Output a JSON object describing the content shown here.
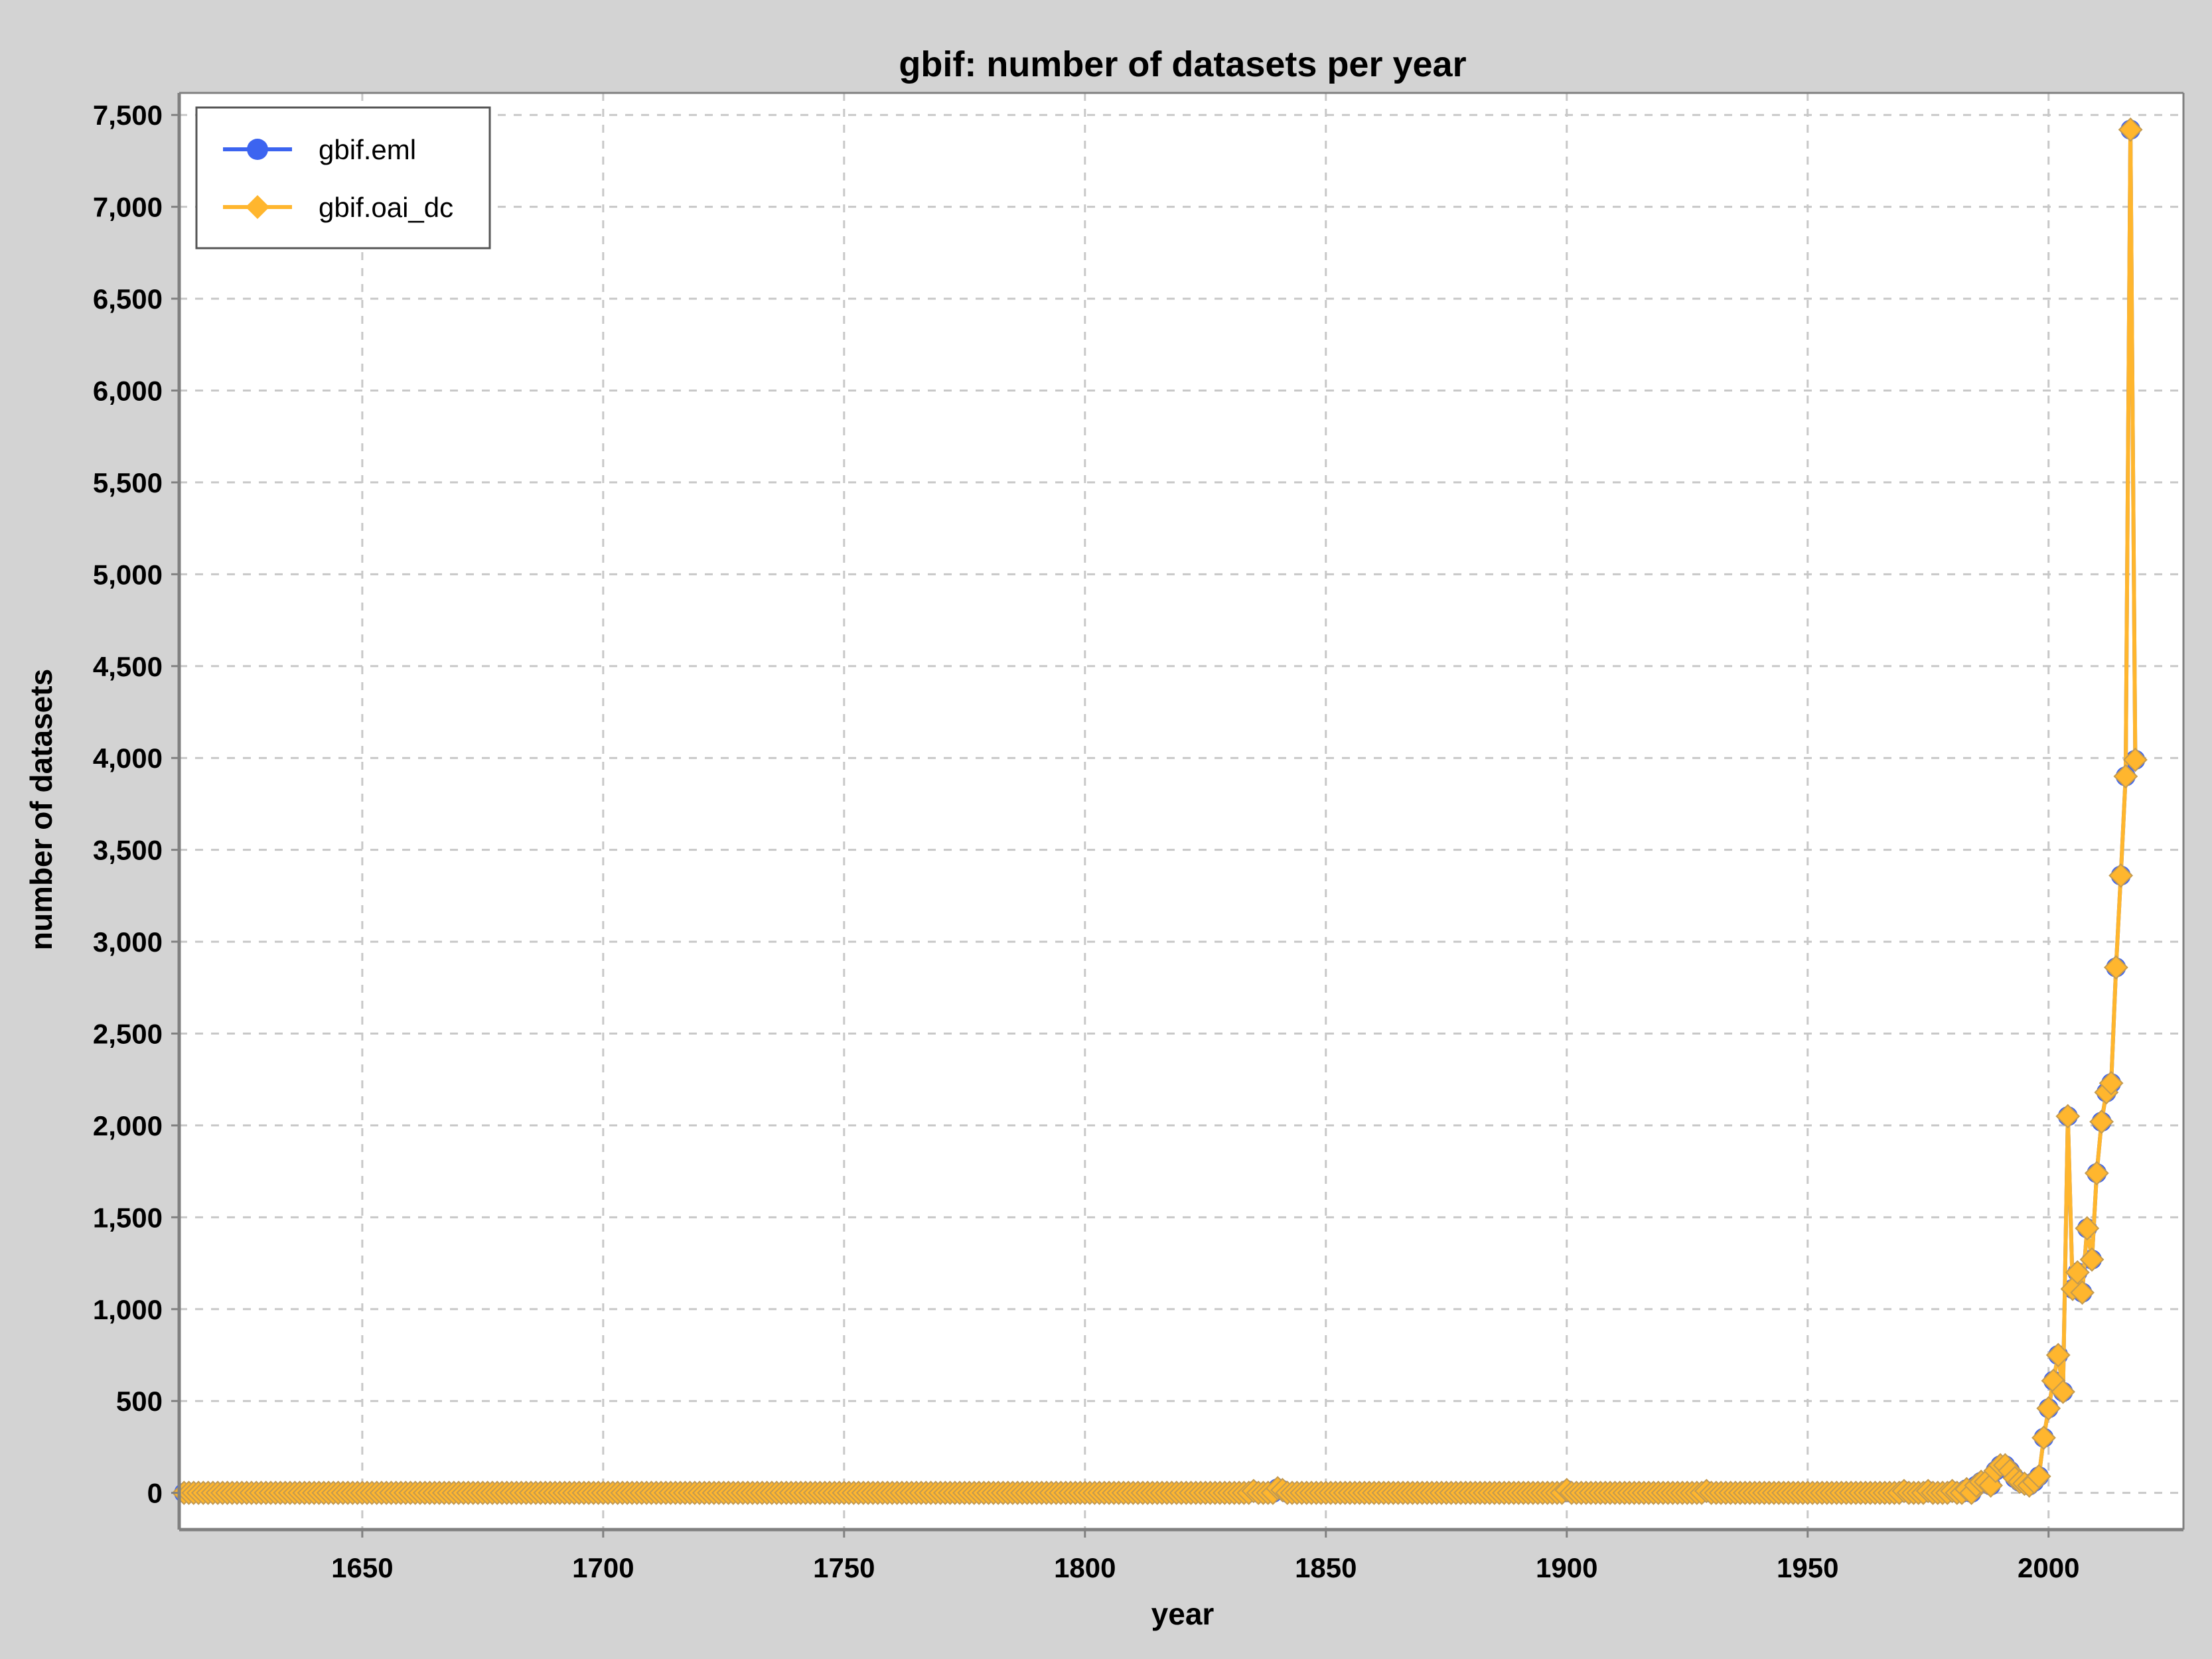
{
  "chart_data": {
    "type": "line",
    "title": "gbif: number of datasets per year",
    "xlabel": "year",
    "ylabel": "number of datasets",
    "xlim": [
      1612,
      2028
    ],
    "ylim": [
      -200,
      7620
    ],
    "x_ticks": [
      1650,
      1700,
      1750,
      1800,
      1850,
      1900,
      1950,
      2000
    ],
    "y_ticks": [
      0,
      500,
      1000,
      1500,
      2000,
      2500,
      3000,
      3500,
      4000,
      4500,
      5000,
      5500,
      6000,
      6500,
      7000,
      7500
    ],
    "y_tick_labels": [
      "0",
      "500",
      "1,000",
      "1,500",
      "2,000",
      "2,500",
      "3,000",
      "3,500",
      "4,000",
      "4,500",
      "5,000",
      "5,500",
      "6,000",
      "6,500",
      "7,000",
      "7,500"
    ],
    "grid": true,
    "legend_position": "top-left",
    "background": "#ffffff",
    "series": [
      {
        "name": "gbif.eml",
        "color": "#3c64f0",
        "marker": "circle",
        "x_range": [
          1613,
          2018
        ],
        "baseline_value": 0,
        "overrides": [
          [
            1835,
            10
          ],
          [
            1840,
            25
          ],
          [
            1841,
            15
          ],
          [
            1900,
            15
          ],
          [
            1929,
            10
          ],
          [
            1970,
            10
          ],
          [
            1975,
            10
          ],
          [
            1980,
            10
          ],
          [
            1983,
            20
          ],
          [
            1985,
            40
          ],
          [
            1986,
            60
          ],
          [
            1987,
            60
          ],
          [
            1988,
            40
          ],
          [
            1989,
            120
          ],
          [
            1990,
            150
          ],
          [
            1991,
            150
          ],
          [
            1992,
            120
          ],
          [
            1993,
            80
          ],
          [
            1994,
            60
          ],
          [
            1995,
            50
          ],
          [
            1996,
            40
          ],
          [
            1997,
            60
          ],
          [
            1998,
            90
          ],
          [
            1999,
            300
          ],
          [
            2000,
            460
          ],
          [
            2001,
            610
          ],
          [
            2002,
            750
          ],
          [
            2003,
            550
          ],
          [
            2004,
            2050
          ],
          [
            2005,
            1110
          ],
          [
            2006,
            1200
          ],
          [
            2007,
            1090
          ],
          [
            2008,
            1440
          ],
          [
            2009,
            1270
          ],
          [
            2010,
            1740
          ],
          [
            2011,
            2020
          ],
          [
            2012,
            2180
          ],
          [
            2013,
            2230
          ],
          [
            2014,
            2860
          ],
          [
            2015,
            3360
          ],
          [
            2016,
            3900
          ],
          [
            2017,
            7420
          ],
          [
            2018,
            3990
          ]
        ]
      },
      {
        "name": "gbif.oai_dc",
        "color": "#ffb62e",
        "marker": "diamond",
        "x_range": [
          1613,
          2018
        ],
        "baseline_value": 0,
        "overrides": [
          [
            1835,
            10
          ],
          [
            1840,
            25
          ],
          [
            1841,
            15
          ],
          [
            1900,
            15
          ],
          [
            1929,
            10
          ],
          [
            1970,
            10
          ],
          [
            1975,
            10
          ],
          [
            1980,
            10
          ],
          [
            1983,
            20
          ],
          [
            1985,
            40
          ],
          [
            1986,
            60
          ],
          [
            1987,
            60
          ],
          [
            1988,
            40
          ],
          [
            1989,
            120
          ],
          [
            1990,
            150
          ],
          [
            1991,
            150
          ],
          [
            1992,
            120
          ],
          [
            1993,
            80
          ],
          [
            1994,
            60
          ],
          [
            1995,
            50
          ],
          [
            1996,
            40
          ],
          [
            1997,
            60
          ],
          [
            1998,
            90
          ],
          [
            1999,
            300
          ],
          [
            2000,
            460
          ],
          [
            2001,
            610
          ],
          [
            2002,
            750
          ],
          [
            2003,
            550
          ],
          [
            2004,
            2050
          ],
          [
            2005,
            1110
          ],
          [
            2006,
            1200
          ],
          [
            2007,
            1090
          ],
          [
            2008,
            1440
          ],
          [
            2009,
            1270
          ],
          [
            2010,
            1740
          ],
          [
            2011,
            2020
          ],
          [
            2012,
            2180
          ],
          [
            2013,
            2230
          ],
          [
            2014,
            2860
          ],
          [
            2015,
            3360
          ],
          [
            2016,
            3900
          ],
          [
            2017,
            7420
          ],
          [
            2018,
            3990
          ]
        ]
      }
    ]
  }
}
